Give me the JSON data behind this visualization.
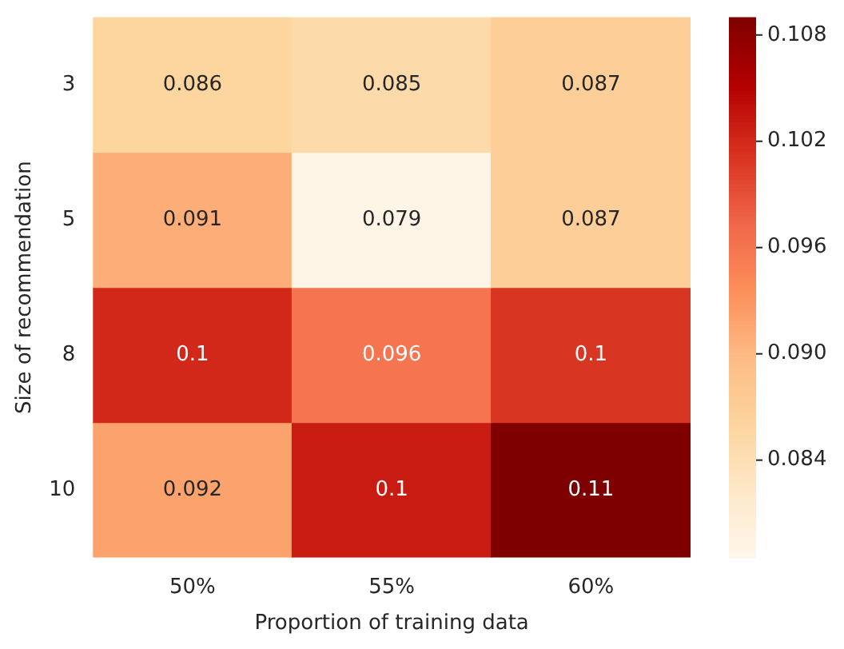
{
  "chart_data": {
    "type": "heatmap",
    "xlabel": "Proportion of training data",
    "ylabel": "Size of recommendation",
    "categories": [
      "50%",
      "55%",
      "60%"
    ],
    "y_categories": [
      "3",
      "5",
      "8",
      "10"
    ],
    "cells": [
      [
        0.086,
        0.085,
        0.087
      ],
      [
        0.091,
        0.079,
        0.087
      ],
      [
        0.102,
        0.096,
        0.101
      ],
      [
        0.092,
        0.103,
        0.109
      ]
    ],
    "cell_labels": [
      [
        "0.086",
        "0.085",
        "0.087"
      ],
      [
        "0.091",
        "0.079",
        "0.087"
      ],
      [
        "0.1",
        "0.096",
        "0.1"
      ],
      [
        "0.092",
        "0.1",
        "0.11"
      ]
    ],
    "clim": [
      0.0785,
      0.109
    ],
    "cticks": [
      0.084,
      {
        "value": 0.09,
        "label": "0.090"
      },
      0.096,
      0.102,
      0.108
    ]
  }
}
